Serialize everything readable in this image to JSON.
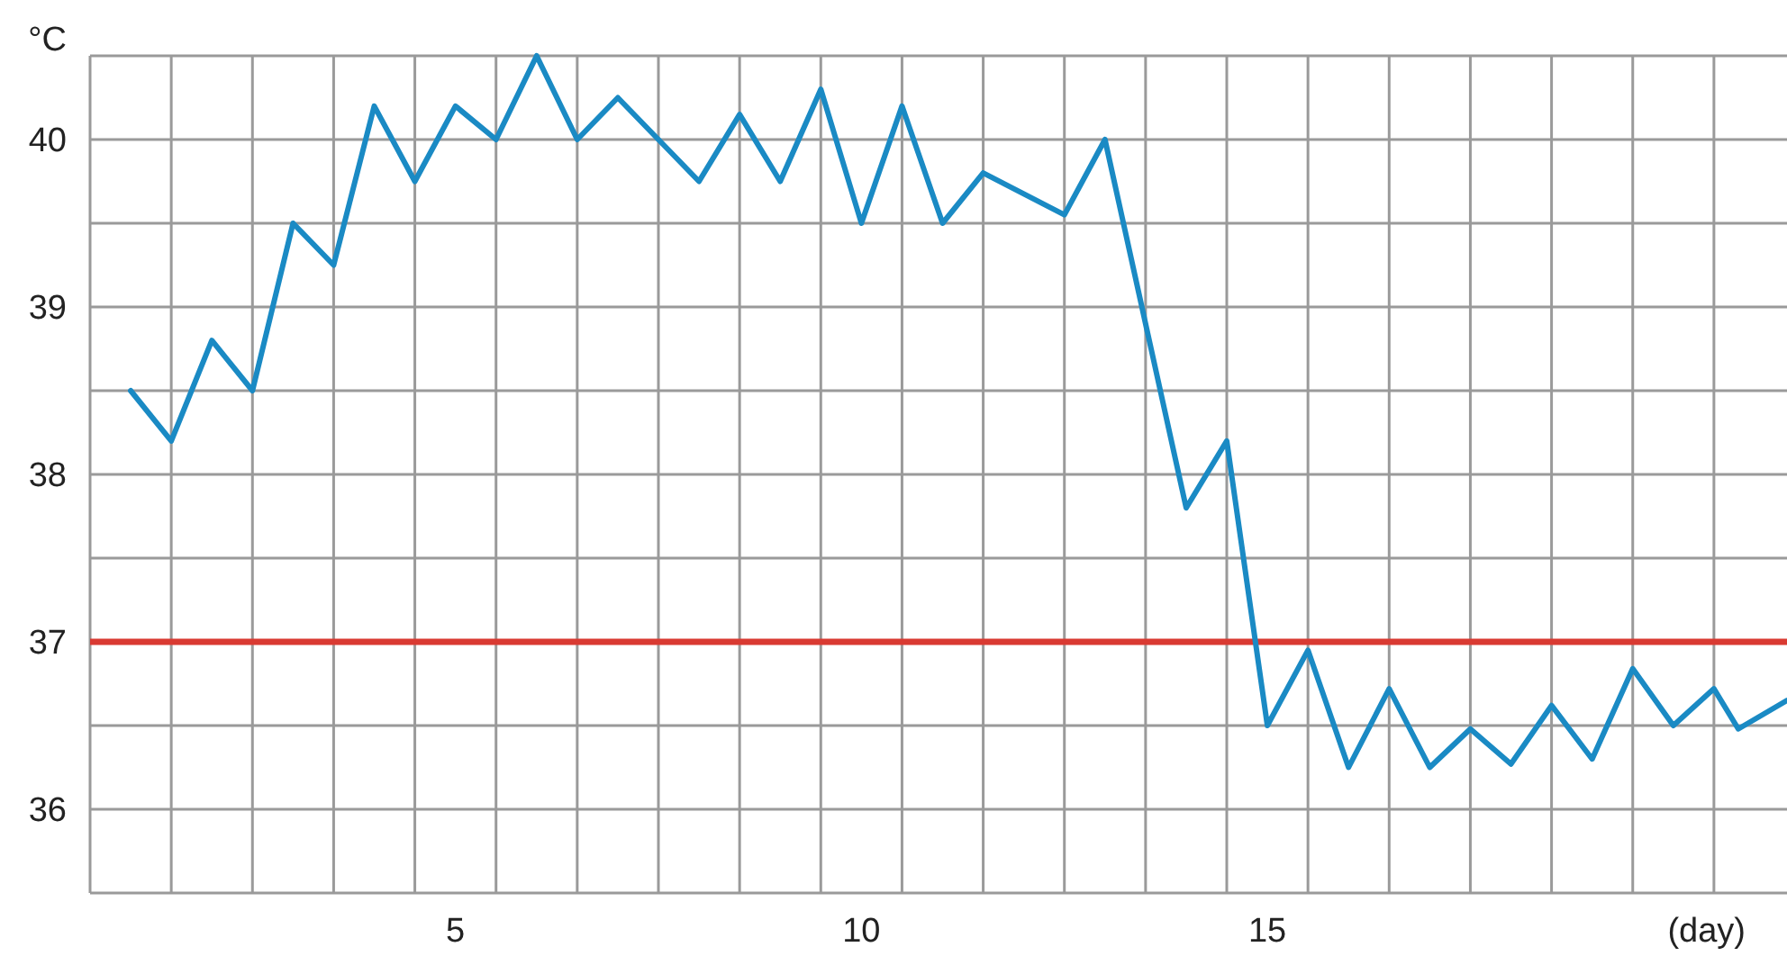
{
  "chart_data": {
    "type": "line",
    "xlabel": "(day)",
    "ylabel": "°C",
    "xlim": [
      0.5,
      21.4
    ],
    "ylim": [
      35.5,
      40.5
    ],
    "xticks": [
      {
        "value": 1.5,
        "label": null
      },
      {
        "value": 2.5,
        "label": null
      },
      {
        "value": 3.5,
        "label": null
      },
      {
        "value": 4.5,
        "label": null
      },
      {
        "value": 5,
        "label": "5"
      },
      {
        "value": 5.5,
        "label": null
      },
      {
        "value": 6.5,
        "label": null
      },
      {
        "value": 7.5,
        "label": null
      },
      {
        "value": 8.5,
        "label": null
      },
      {
        "value": 9.5,
        "label": null
      },
      {
        "value": 10,
        "label": "10"
      },
      {
        "value": 10.5,
        "label": null
      },
      {
        "value": 11.5,
        "label": null
      },
      {
        "value": 12.5,
        "label": null
      },
      {
        "value": 13.5,
        "label": null
      },
      {
        "value": 14.5,
        "label": null
      },
      {
        "value": 15,
        "label": "15"
      },
      {
        "value": 15.5,
        "label": null
      },
      {
        "value": 16.5,
        "label": null
      },
      {
        "value": 17.5,
        "label": null
      },
      {
        "value": 18.5,
        "label": null
      },
      {
        "value": 19.5,
        "label": null
      },
      {
        "value": 20.5,
        "label": null
      }
    ],
    "yticks": [
      {
        "value": 36,
        "label": "36"
      },
      {
        "value": 36.5,
        "label": null
      },
      {
        "value": 37,
        "label": "37"
      },
      {
        "value": 37.5,
        "label": null
      },
      {
        "value": 38,
        "label": "38"
      },
      {
        "value": 38.5,
        "label": null
      },
      {
        "value": 39,
        "label": "39"
      },
      {
        "value": 39.5,
        "label": null
      },
      {
        "value": 40,
        "label": "40"
      },
      {
        "value": 40.5,
        "label": null
      }
    ],
    "grid": true,
    "marker": "none",
    "line_style": "solid",
    "ref_lines": [
      {
        "axis": "y",
        "value": 37,
        "color": "#d93a32"
      }
    ],
    "series": [
      {
        "color": "#1a8ac4",
        "x": [
          1,
          1.5,
          2,
          2.5,
          3,
          3.5,
          4,
          4.5,
          5,
          5.5,
          6,
          6.5,
          7,
          7.5,
          8,
          8.5,
          9,
          9.5,
          10,
          10.5,
          11,
          11.5,
          12.5,
          13,
          14,
          14.5,
          15,
          15.5,
          16,
          16.5,
          17,
          17.5,
          18,
          18.5,
          19,
          19.5,
          20,
          20.5,
          20.8,
          21.4
        ],
        "values": [
          38.5,
          38.2,
          38.8,
          38.5,
          39.5,
          39.25,
          40.2,
          39.75,
          40.2,
          40.0,
          40.5,
          40.0,
          40.25,
          40.0,
          39.75,
          40.15,
          39.75,
          40.3,
          39.5,
          40.2,
          39.5,
          39.8,
          39.55,
          40.0,
          37.8,
          38.2,
          36.5,
          36.95,
          36.25,
          36.72,
          36.25,
          36.48,
          36.27,
          36.62,
          36.3,
          36.84,
          36.5,
          36.72,
          36.48,
          36.65
        ]
      }
    ]
  }
}
